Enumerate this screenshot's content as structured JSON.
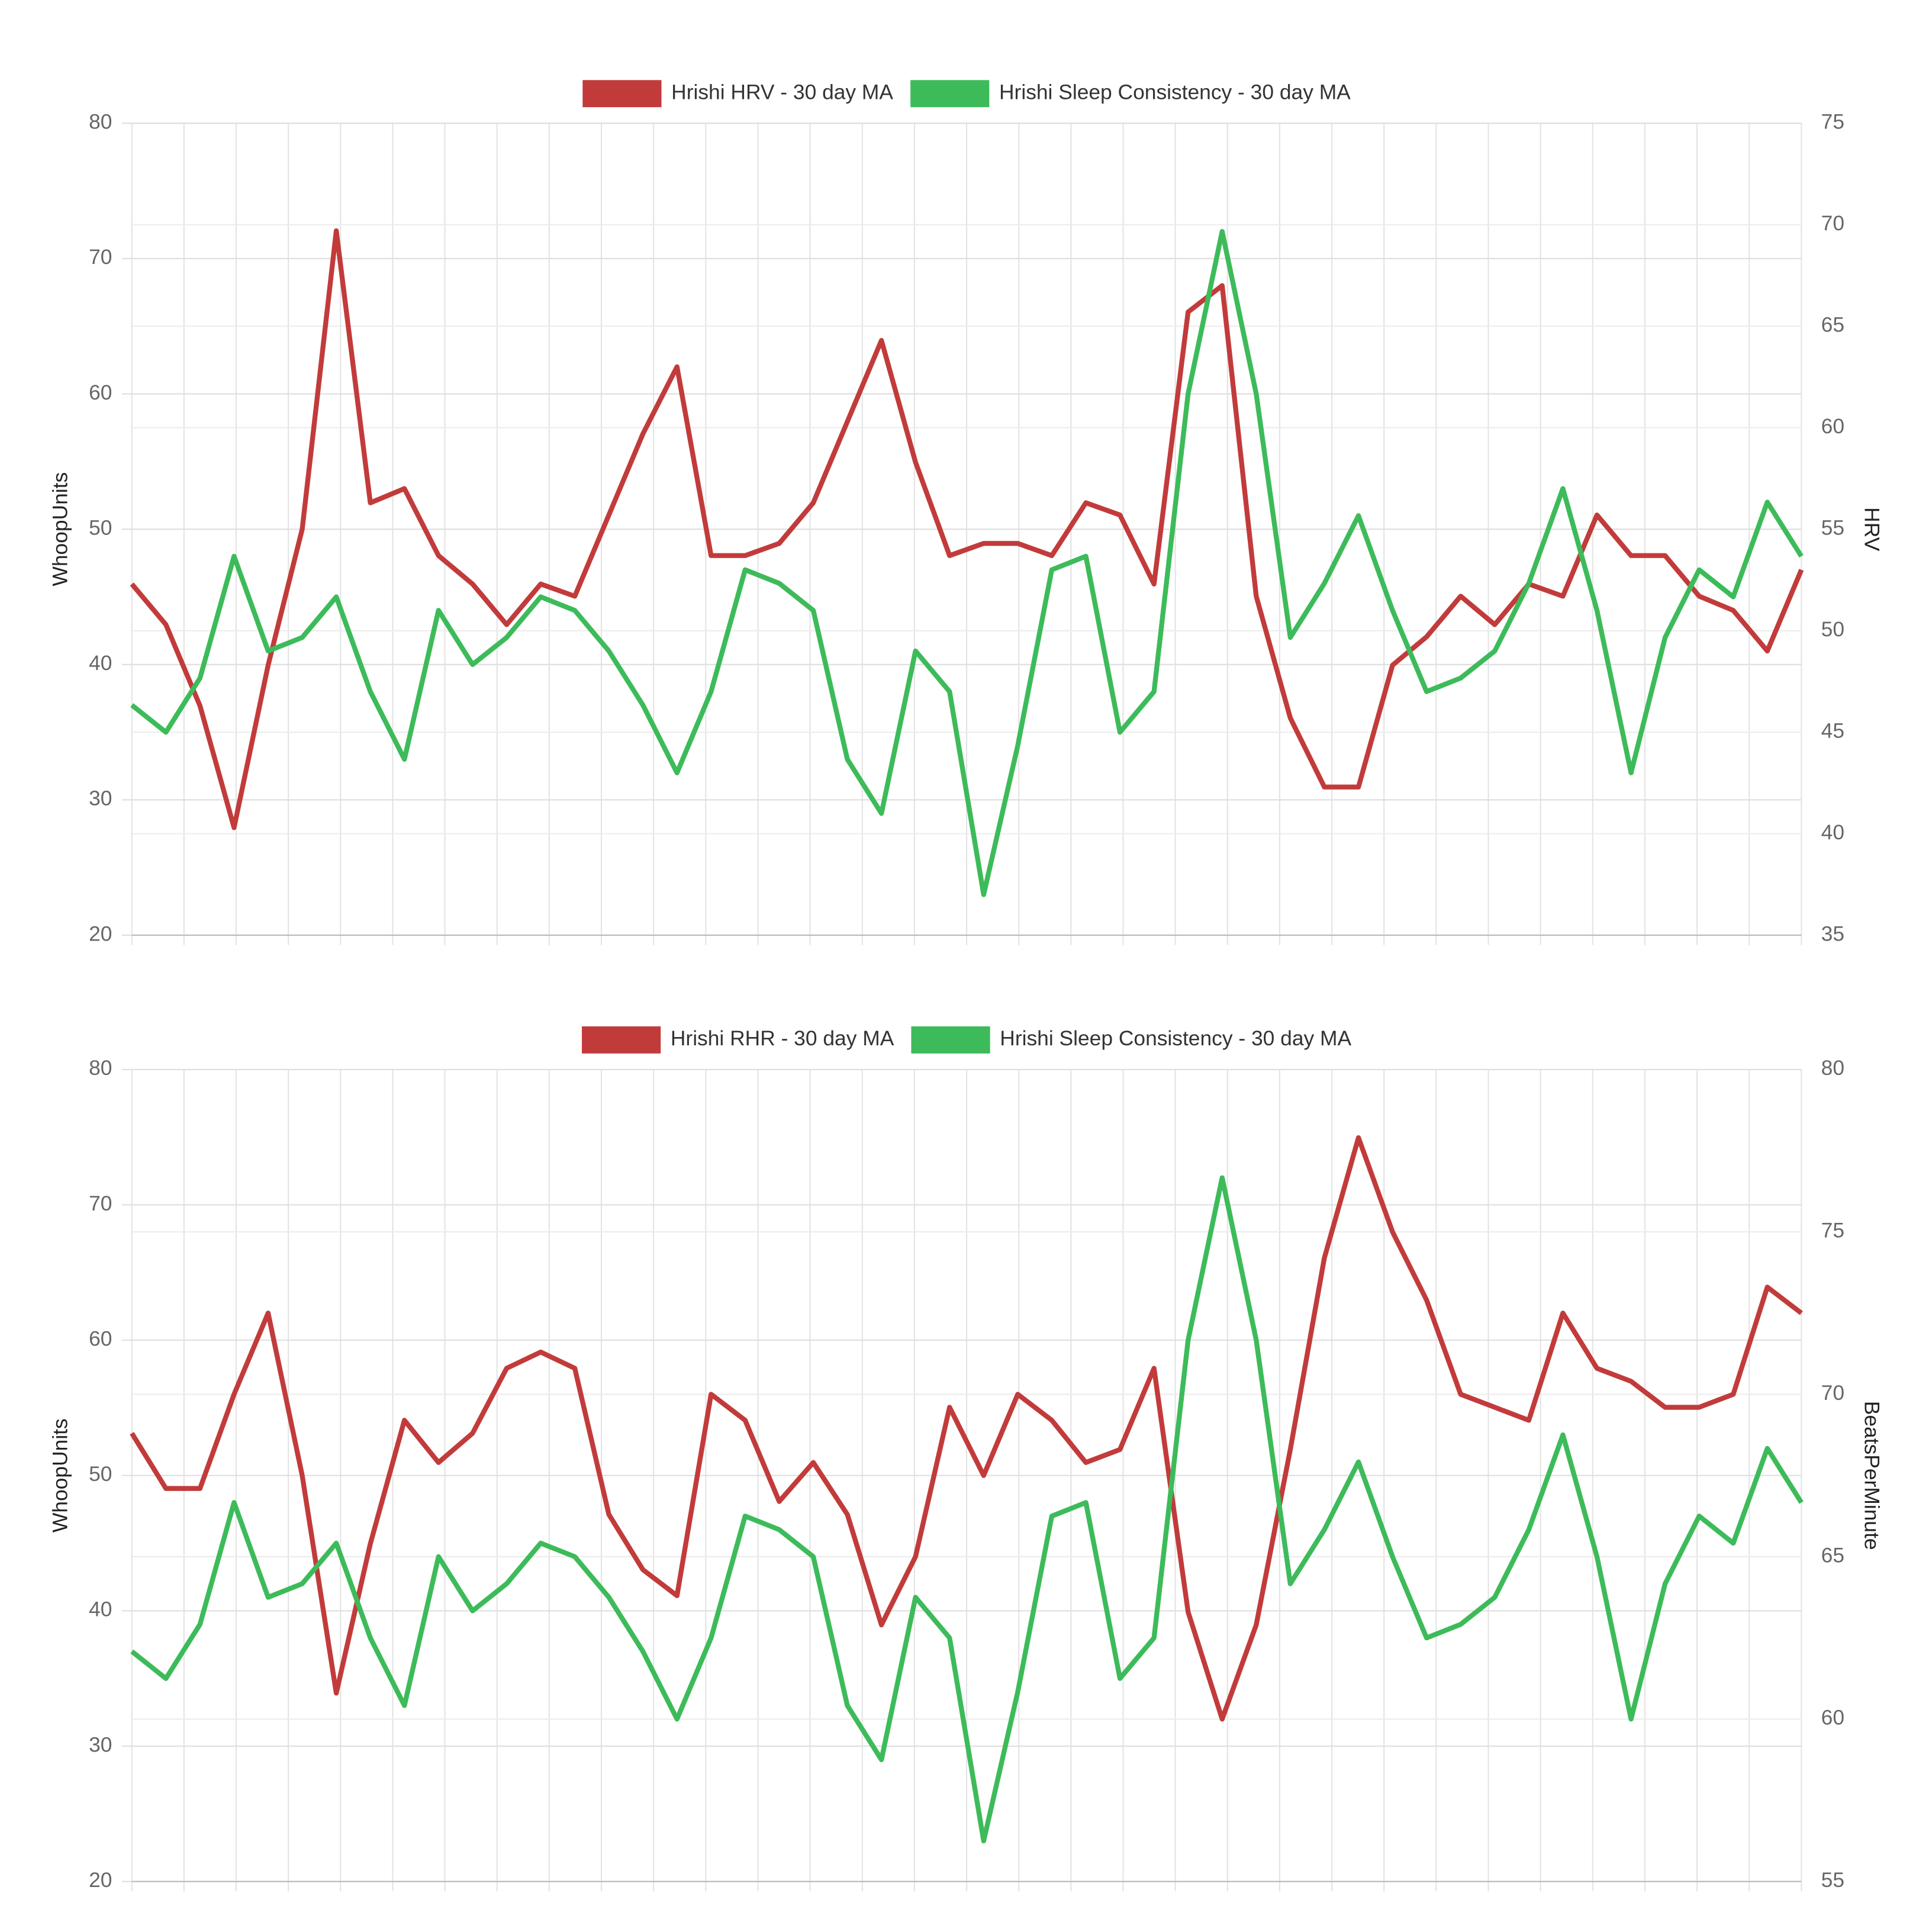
{
  "chart_data": [
    {
      "type": "line",
      "categories": [
        null,
        null,
        null,
        null,
        null,
        null,
        null,
        null,
        null,
        null,
        null,
        null,
        null,
        null,
        null,
        null,
        null,
        null,
        null,
        null,
        null,
        null,
        null,
        null,
        null,
        null,
        null,
        null,
        null,
        null,
        null,
        null,
        null,
        null,
        null,
        null,
        null,
        null,
        null,
        null,
        null,
        null,
        null,
        null,
        null,
        null,
        null,
        null,
        null,
        null
      ],
      "series": [
        {
          "name": "Hrishi HRV - 30 day MA",
          "color": "#c23b3b",
          "axis": "y2",
          "values": [
            52.3,
            50.3,
            46.3,
            40.3,
            48.3,
            55,
            69.7,
            56.3,
            57,
            53.7,
            52.3,
            50.3,
            52.3,
            51.7,
            55.7,
            59.7,
            63,
            53.7,
            53.7,
            54.3,
            56.3,
            60.3,
            64.3,
            58.3,
            53.7,
            54.3,
            54.3,
            53.7,
            56.3,
            55.7,
            52.3,
            65.7,
            67,
            51.7,
            45.7,
            42.3,
            42.3,
            48.3,
            49.7,
            51.7,
            50.3,
            52.3,
            51.7,
            55.7,
            53.7,
            53.7,
            51.7,
            51,
            49,
            53
          ]
        },
        {
          "name": "Hrishi Sleep Consistency - 30 day MA",
          "color": "#3dbb5a",
          "values": [
            37,
            35,
            39,
            48,
            41,
            42,
            45,
            38,
            33,
            44,
            40,
            42,
            45,
            44,
            41,
            37,
            32,
            38,
            47,
            46,
            44,
            33,
            29,
            41,
            38,
            23,
            34,
            47,
            48,
            35,
            38,
            60,
            72,
            60,
            42,
            46,
            51,
            44,
            38,
            39,
            41,
            46,
            53,
            44,
            32,
            42,
            47,
            45,
            52,
            48
          ]
        }
      ],
      "ylabel": "WhoopUnits",
      "y2label": "HRV",
      "ylim": [
        20,
        80
      ],
      "yticks": [
        20,
        30,
        40,
        50,
        60,
        70,
        80
      ],
      "y2lim": [
        35,
        75
      ],
      "y2ticks": [
        35,
        40,
        45,
        50,
        55,
        60,
        65,
        70,
        75
      ],
      "grid": true
    },
    {
      "type": "line",
      "categories": [
        null,
        null,
        null,
        null,
        null,
        null,
        null,
        null,
        null,
        null,
        null,
        null,
        null,
        null,
        null,
        null,
        null,
        null,
        null,
        null,
        null,
        null,
        null,
        null,
        null,
        null,
        null,
        null,
        null,
        null,
        null,
        null,
        null,
        null,
        null,
        null,
        null,
        null,
        null,
        null,
        null,
        null,
        null,
        null,
        null,
        null,
        null,
        null,
        null,
        null
      ],
      "series": [
        {
          "name": "Hrishi RHR - 30 day MA",
          "color": "#c23b3b",
          "axis": "y2",
          "values": [
            68.8,
            67.1,
            67.1,
            70,
            72.5,
            67.5,
            60.8,
            65.4,
            69.2,
            67.9,
            68.8,
            70.8,
            71.3,
            70.8,
            66.3,
            64.6,
            63.8,
            70,
            69.2,
            66.7,
            67.9,
            66.3,
            62.9,
            65,
            69.6,
            67.5,
            70,
            69.2,
            67.9,
            68.3,
            70.8,
            63.3,
            60,
            62.9,
            68.3,
            74.2,
            77.9,
            75,
            72.9,
            70,
            69.6,
            69.2,
            72.5,
            70.8,
            70.4,
            69.6,
            69.6,
            70,
            73.3,
            72.5
          ]
        },
        {
          "name": "Hrishi Sleep Consistency - 30 day MA",
          "color": "#3dbb5a",
          "values": [
            37,
            35,
            39,
            48,
            41,
            42,
            45,
            38,
            33,
            44,
            40,
            42,
            45,
            44,
            41,
            37,
            32,
            38,
            47,
            46,
            44,
            33,
            29,
            41,
            38,
            23,
            34,
            47,
            48,
            35,
            38,
            60,
            72,
            60,
            42,
            46,
            51,
            44,
            38,
            39,
            41,
            46,
            53,
            44,
            32,
            42,
            47,
            45,
            52,
            48
          ]
        }
      ],
      "ylabel": "WhoopUnits",
      "y2label": "BeatsPerMinute",
      "ylim": [
        20,
        80
      ],
      "yticks": [
        20,
        30,
        40,
        50,
        60,
        70,
        80
      ],
      "y2lim": [
        55,
        80
      ],
      "y2ticks": [
        55,
        60,
        65,
        70,
        75,
        80
      ],
      "grid": true
    }
  ]
}
